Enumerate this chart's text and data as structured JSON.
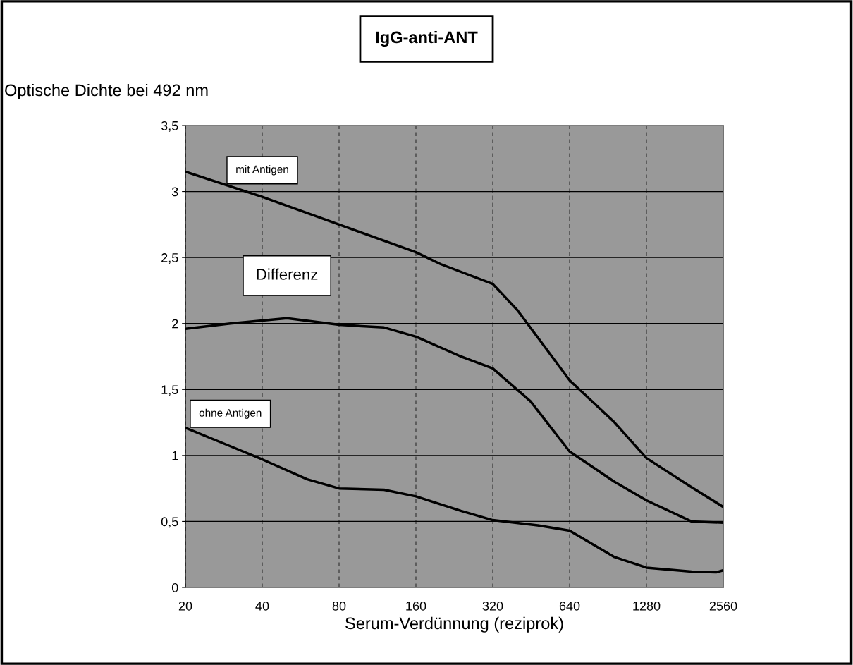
{
  "chart_data": {
    "type": "line",
    "title": "IgG-anti-ANT",
    "ylabel": "Optische Dichte bei 492 nm",
    "xlabel": "Serum-Verdünnung (reziprok)",
    "log": "x",
    "xlim": [
      20,
      2560
    ],
    "xticks": [
      20,
      40,
      80,
      160,
      320,
      640,
      1280,
      2560
    ],
    "ylim": [
      0,
      3.5
    ],
    "yticks": [
      0,
      {
        "value": 0.5,
        "label": "0,5"
      },
      1,
      {
        "value": 1.5,
        "label": "1,5"
      },
      2,
      {
        "value": 2.5,
        "label": "2,5"
      },
      3,
      {
        "value": 3.5,
        "label": "3,5"
      }
    ],
    "grid": true,
    "legend": false,
    "marker": "none",
    "line_style": "solid",
    "series": [
      {
        "name": "mit Antigen",
        "color": "#000000",
        "x": [
          20,
          40,
          80,
          160,
          200,
          320,
          400,
          640,
          960,
          1280,
          1920,
          2560
        ],
        "values": [
          3.15,
          2.96,
          2.75,
          2.54,
          2.45,
          2.3,
          2.1,
          1.57,
          1.25,
          0.98,
          0.76,
          0.61
        ]
      },
      {
        "name": "Differenz",
        "color": "#000000",
        "x": [
          20,
          30,
          50,
          80,
          120,
          160,
          240,
          320,
          450,
          640,
          960,
          1280,
          1920,
          2560
        ],
        "values": [
          1.96,
          2.0,
          2.04,
          1.99,
          1.97,
          1.9,
          1.75,
          1.66,
          1.41,
          1.03,
          0.8,
          0.66,
          0.5,
          0.49
        ]
      },
      {
        "name": "ohne Antigen",
        "color": "#000000",
        "x": [
          20,
          30,
          40,
          60,
          80,
          120,
          160,
          240,
          320,
          480,
          640,
          960,
          1280,
          1920,
          2400,
          2560
        ],
        "values": [
          1.21,
          1.07,
          0.97,
          0.82,
          0.75,
          0.74,
          0.69,
          0.58,
          0.51,
          0.47,
          0.43,
          0.23,
          0.15,
          0.12,
          0.115,
          0.13
        ]
      }
    ]
  }
}
